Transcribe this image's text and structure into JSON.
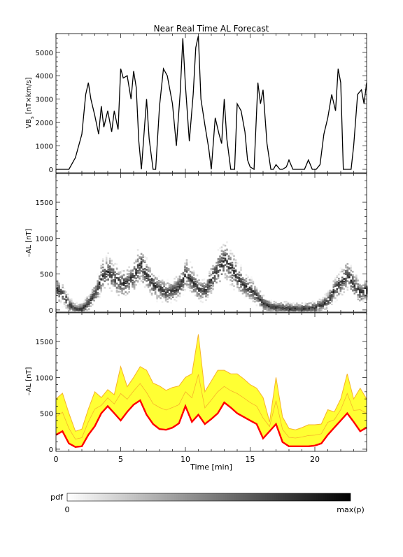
{
  "title": "Near Real Time AL Forecast",
  "colors": {
    "axes": "#000000",
    "vbs_line": "#000000",
    "forecast_fill": "#ffff33",
    "forecast_envelope": "#f7b32a",
    "forecast_median": "#ff0000",
    "pdf_low": "#ffffff",
    "pdf_high": "#000000"
  },
  "chart_data": [
    {
      "type": "line",
      "panel": "top",
      "ylabel": "VB",
      "ylabel_sub": "s",
      "ylabel_unit": "[nT×km/s]",
      "xlim": [
        0,
        24
      ],
      "ylim": [
        -150,
        5800
      ],
      "yticks": [
        0,
        1000,
        2000,
        3000,
        4000,
        5000
      ],
      "series": [
        {
          "x": [
            0,
            1.0,
            1.5,
            2.0,
            2.3,
            2.5,
            2.7,
            3.0,
            3.3,
            3.5,
            3.7,
            4.0,
            4.3,
            4.5,
            4.8,
            5.0,
            5.2,
            5.5,
            5.8,
            6.0,
            6.2,
            6.4,
            6.6,
            6.8,
            7.0,
            7.2,
            7.5,
            7.7,
            8.0,
            8.3,
            8.6,
            9.0,
            9.3,
            9.6,
            9.8,
            10.0,
            10.3,
            10.6,
            10.8,
            11.0,
            11.2,
            11.5,
            11.8,
            12.0,
            12.3,
            12.6,
            12.8,
            13.0,
            13.2,
            13.5,
            13.8,
            14.0,
            14.3,
            14.6,
            14.8,
            15.0,
            15.3,
            15.6,
            15.8,
            16.0,
            16.3,
            16.6,
            16.8,
            17.0,
            17.3,
            17.5,
            17.8,
            18.0,
            18.3,
            18.6,
            18.9,
            19.2,
            19.5,
            19.8,
            20.1,
            20.4,
            20.7,
            21.0,
            21.3,
            21.6,
            21.8,
            22.0,
            22.2,
            22.5,
            22.8,
            23.0,
            23.3,
            23.6,
            23.8,
            24.0
          ],
          "values": [
            0,
            0,
            500,
            1500,
            3200,
            3700,
            3000,
            2300,
            1500,
            2700,
            1800,
            2500,
            1600,
            2500,
            1700,
            4300,
            3900,
            4000,
            3000,
            4200,
            3500,
            1200,
            0,
            1500,
            3000,
            1300,
            0,
            0,
            2700,
            4300,
            4000,
            2800,
            1000,
            3300,
            5600,
            3600,
            1200,
            3200,
            5200,
            5700,
            3000,
            1900,
            900,
            0,
            2200,
            1500,
            1100,
            3000,
            1300,
            0,
            0,
            2800,
            2500,
            1600,
            400,
            100,
            0,
            3700,
            2800,
            3400,
            1100,
            0,
            0,
            200,
            0,
            0,
            100,
            400,
            0,
            0,
            0,
            0,
            400,
            0,
            0,
            200,
            1500,
            2200,
            3200,
            2500,
            4300,
            3700,
            0,
            0,
            0,
            1000,
            3200,
            3400,
            2800,
            3700
          ]
        }
      ]
    },
    {
      "type": "heatmap",
      "panel": "middle",
      "ylabel": "–AL [nT]",
      "xlim": [
        0,
        24
      ],
      "ylim": [
        -30,
        1900
      ],
      "yticks": [
        0,
        500,
        1000,
        1500
      ],
      "x": [
        0,
        0.5,
        1.0,
        1.5,
        2.0,
        2.5,
        3.0,
        3.5,
        4.0,
        4.5,
        5.0,
        5.5,
        6.0,
        6.5,
        7.0,
        7.5,
        8.0,
        8.5,
        9.0,
        9.5,
        10.0,
        10.5,
        11.0,
        11.5,
        12.0,
        12.5,
        13.0,
        13.5,
        14.0,
        14.5,
        15.0,
        15.5,
        16.0,
        16.5,
        17.0,
        17.5,
        18.0,
        18.5,
        19.0,
        19.5,
        20.0,
        20.5,
        21.0,
        21.5,
        22.0,
        22.5,
        23.0,
        23.5,
        24.0
      ],
      "peak_values": [
        300,
        220,
        80,
        20,
        30,
        120,
        250,
        480,
        550,
        450,
        380,
        400,
        500,
        650,
        480,
        350,
        300,
        260,
        280,
        350,
        520,
        400,
        300,
        280,
        450,
        600,
        700,
        600,
        450,
        350,
        300,
        200,
        100,
        60,
        50,
        40,
        30,
        30,
        30,
        35,
        50,
        80,
        150,
        300,
        400,
        500,
        350,
        250,
        300
      ],
      "colorbar": {
        "label": "pdf",
        "min_label": "0",
        "max_label": "max(p)"
      }
    },
    {
      "type": "area",
      "panel": "bottom",
      "xlabel": "Time [min]",
      "ylabel": "–AL [nT]",
      "xlim": [
        0,
        24
      ],
      "ylim": [
        -30,
        1900
      ],
      "xticks": [
        0,
        5,
        10,
        15,
        20
      ],
      "yticks": [
        0,
        500,
        1000,
        1500
      ],
      "x": [
        0,
        0.5,
        1.0,
        1.5,
        2.0,
        2.5,
        3.0,
        3.5,
        4.0,
        4.5,
        5.0,
        5.5,
        6.0,
        6.5,
        7.0,
        7.5,
        8.0,
        8.5,
        9.0,
        9.5,
        10.0,
        10.5,
        11.0,
        11.5,
        12.0,
        12.5,
        13.0,
        13.5,
        14.0,
        14.5,
        15.0,
        15.5,
        16.0,
        16.5,
        17.0,
        17.5,
        18.0,
        18.5,
        19.0,
        19.5,
        20.0,
        20.5,
        21.0,
        21.5,
        22.0,
        22.5,
        23.0,
        23.5,
        24.0
      ],
      "series": [
        {
          "role": "envelope",
          "values": [
            700,
            780,
            500,
            250,
            280,
            560,
            800,
            720,
            830,
            760,
            1150,
            870,
            1000,
            1150,
            1100,
            920,
            880,
            820,
            860,
            880,
            1000,
            1050,
            1600,
            800,
            950,
            1100,
            1100,
            1050,
            1050,
            980,
            900,
            850,
            720,
            380,
            1000,
            450,
            290,
            270,
            300,
            340,
            340,
            350,
            550,
            520,
            700,
            1050,
            700,
            850,
            700
          ]
        },
        {
          "role": "median",
          "values": [
            200,
            250,
            80,
            30,
            40,
            200,
            320,
            500,
            600,
            500,
            400,
            520,
            620,
            680,
            480,
            350,
            280,
            270,
            300,
            360,
            600,
            380,
            480,
            350,
            420,
            500,
            650,
            580,
            500,
            450,
            400,
            350,
            150,
            250,
            350,
            100,
            40,
            40,
            40,
            40,
            50,
            80,
            200,
            300,
            400,
            500,
            380,
            250,
            300
          ]
        }
      ]
    }
  ]
}
